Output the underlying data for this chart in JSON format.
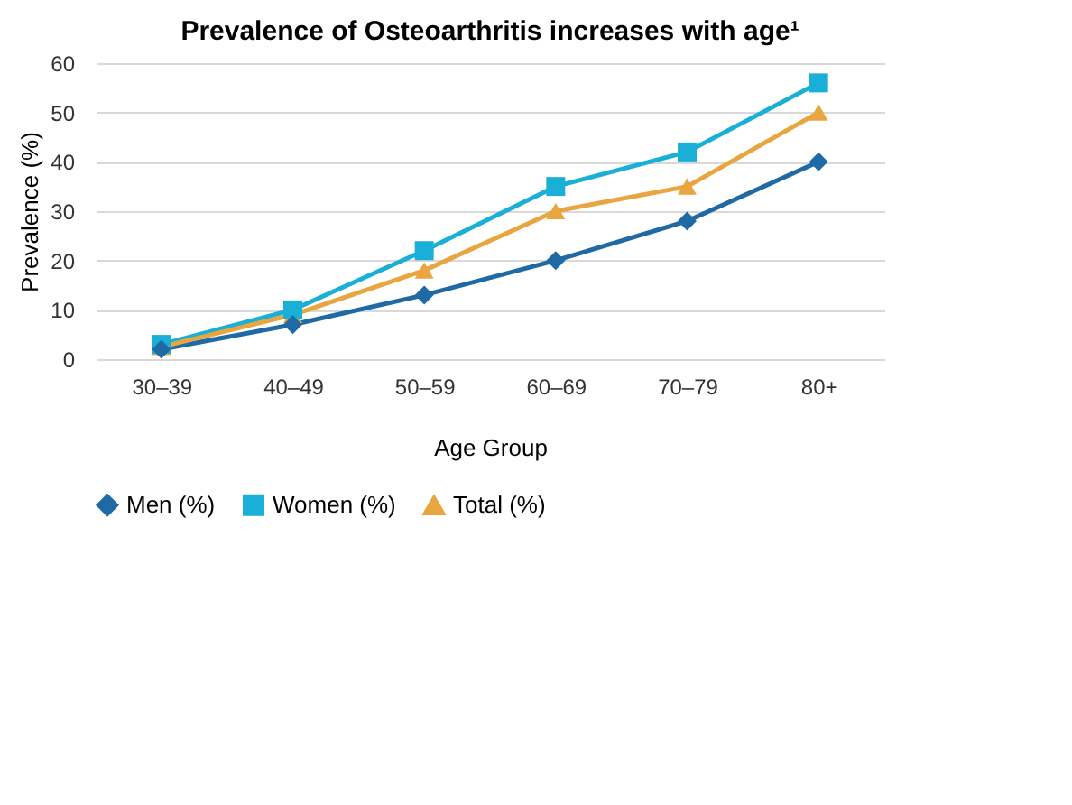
{
  "chart_data": {
    "type": "line",
    "title": "Prevalence of Osteoarthritis increases with age¹",
    "xlabel": "Age Group",
    "ylabel": "Prevalence (%)",
    "categories": [
      "30–39",
      "40–49",
      "50–59",
      "60–69",
      "70–79",
      "80+"
    ],
    "series": [
      {
        "name": "Men (%)",
        "color": "#1f6aa5",
        "marker": "diamond",
        "values": [
          2,
          7,
          13,
          20,
          28,
          40
        ]
      },
      {
        "name": "Women (%)",
        "color": "#19afd6",
        "marker": "square",
        "values": [
          3,
          10,
          22,
          35,
          42,
          56
        ]
      },
      {
        "name": "Total (%)",
        "color": "#e9a53f",
        "marker": "triangle",
        "values": [
          2.5,
          9,
          18,
          30,
          35,
          50
        ]
      }
    ],
    "ylim": [
      0,
      60
    ],
    "yticks": [
      0,
      10,
      20,
      30,
      40,
      50,
      60
    ],
    "grid": "y",
    "legend": "bottom",
    "line_style": "solid"
  }
}
